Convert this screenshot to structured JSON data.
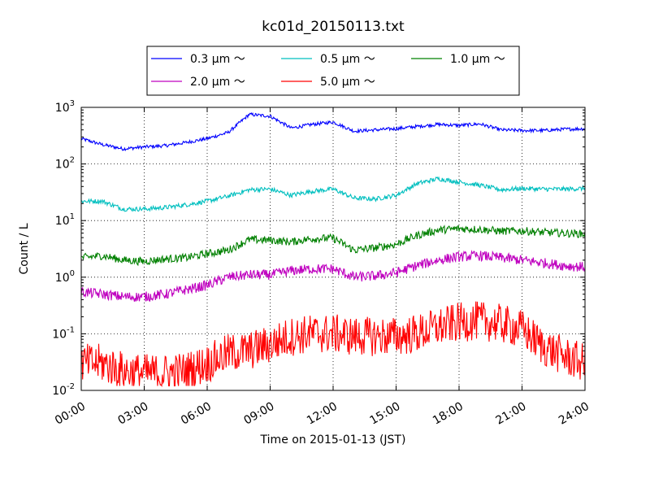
{
  "chart_data": {
    "type": "line",
    "title": "kc01d_20150113.txt",
    "xlabel": "Time on 2015-01-13 (JST)",
    "ylabel": "Count / L",
    "yscale": "log",
    "ylim": [
      0.01,
      1000
    ],
    "xlim": [
      "00:00",
      "24:00"
    ],
    "x_ticks": [
      "00:00",
      "03:00",
      "06:00",
      "09:00",
      "12:00",
      "15:00",
      "18:00",
      "21:00",
      "24:00"
    ],
    "y_ticks": [
      {
        "base": "10",
        "exp": "-2",
        "value": 0.01
      },
      {
        "base": "10",
        "exp": "-1",
        "value": 0.1
      },
      {
        "base": "10",
        "exp": "0",
        "value": 1
      },
      {
        "base": "10",
        "exp": "1",
        "value": 10
      },
      {
        "base": "10",
        "exp": "2",
        "value": 100
      },
      {
        "base": "10",
        "exp": "3",
        "value": 1000
      }
    ],
    "grid": true,
    "legend_position": "top-center",
    "x": [
      "00:00",
      "01:00",
      "02:00",
      "03:00",
      "04:00",
      "05:00",
      "06:00",
      "07:00",
      "08:00",
      "09:00",
      "10:00",
      "11:00",
      "12:00",
      "13:00",
      "14:00",
      "15:00",
      "16:00",
      "17:00",
      "18:00",
      "19:00",
      "20:00",
      "21:00",
      "22:00",
      "23:00",
      "24:00"
    ],
    "series": [
      {
        "name": "0.3 μm ～",
        "color": "#0000ff",
        "noise": 0.03,
        "values": [
          280,
          220,
          185,
          200,
          210,
          240,
          280,
          360,
          750,
          700,
          430,
          500,
          550,
          380,
          400,
          420,
          460,
          500,
          480,
          510,
          400,
          390,
          390,
          410,
          420
        ]
      },
      {
        "name": "0.5 μm ～",
        "color": "#00bfbf",
        "noise": 0.04,
        "values": [
          22,
          22,
          16,
          16,
          17,
          19,
          22,
          27,
          35,
          36,
          28,
          33,
          36,
          25,
          24,
          28,
          45,
          55,
          48,
          42,
          35,
          37,
          36,
          36,
          37
        ]
      },
      {
        "name": "1.0 μm ～",
        "color": "#008000",
        "noise": 0.07,
        "values": [
          2.2,
          2.4,
          2.0,
          1.9,
          2.1,
          2.2,
          2.6,
          3.0,
          4.6,
          4.5,
          4.2,
          4.8,
          4.9,
          3.0,
          3.3,
          3.8,
          5.5,
          6.8,
          7.2,
          7.0,
          6.5,
          6.6,
          6.2,
          6.0,
          5.8
        ]
      },
      {
        "name": "2.0 μm ～",
        "color": "#bf00bf",
        "noise": 0.09,
        "values": [
          0.55,
          0.5,
          0.45,
          0.45,
          0.5,
          0.6,
          0.72,
          1.0,
          1.1,
          1.1,
          1.3,
          1.4,
          1.4,
          1.0,
          1.05,
          1.2,
          1.6,
          2.0,
          2.3,
          2.4,
          2.2,
          2.0,
          1.8,
          1.6,
          1.5
        ]
      },
      {
        "name": "5.0 μm ～",
        "color": "#ff0000",
        "noise": 0.35,
        "values": [
          0.03,
          0.03,
          0.022,
          0.02,
          0.02,
          0.022,
          0.03,
          0.045,
          0.05,
          0.065,
          0.09,
          0.1,
          0.1,
          0.09,
          0.09,
          0.09,
          0.1,
          0.13,
          0.16,
          0.17,
          0.15,
          0.12,
          0.06,
          0.04,
          0.03
        ]
      }
    ]
  }
}
